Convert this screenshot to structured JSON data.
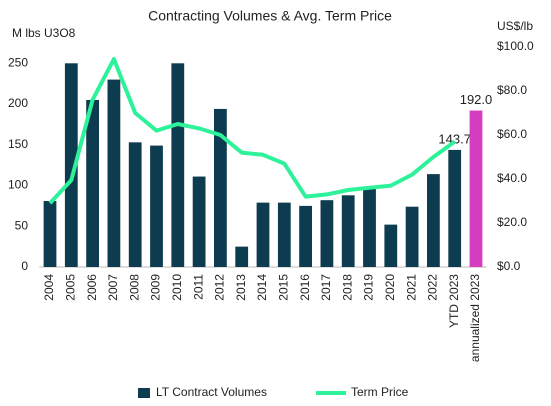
{
  "chart_data": {
    "type": "bar-line",
    "title": "Contracting Volumes & Avg. Term Price",
    "y_label": "M lbs U3O8",
    "y2_label": "US$/lb",
    "categories": [
      "2004",
      "2005",
      "2006",
      "2007",
      "2008",
      "2009",
      "2010",
      "2011",
      "2012",
      "2013",
      "2014",
      "2015",
      "2016",
      "2017",
      "2018",
      "2019",
      "2020",
      "2021",
      "2022",
      "YTD 2023",
      "annualized 2023"
    ],
    "series": [
      {
        "name": "LT Contract Volumes",
        "type": "bar",
        "color": "#0d3b4f",
        "colors": [
          "#0d3b4f",
          "#0d3b4f",
          "#0d3b4f",
          "#0d3b4f",
          "#0d3b4f",
          "#0d3b4f",
          "#0d3b4f",
          "#0d3b4f",
          "#0d3b4f",
          "#0d3b4f",
          "#0d3b4f",
          "#0d3b4f",
          "#0d3b4f",
          "#0d3b4f",
          "#0d3b4f",
          "#0d3b4f",
          "#0d3b4f",
          "#0d3b4f",
          "#0d3b4f",
          "#0d3b4f",
          "#d63cc0"
        ],
        "values": [
          81,
          250,
          205,
          230,
          153,
          149,
          250,
          111,
          194,
          25,
          79,
          79,
          75,
          82,
          88,
          97,
          52,
          74,
          114,
          143.7,
          192.0
        ],
        "value_labels": [
          null,
          null,
          null,
          null,
          null,
          null,
          null,
          null,
          null,
          null,
          null,
          null,
          null,
          null,
          null,
          null,
          null,
          null,
          null,
          "143.7",
          "192.0"
        ]
      },
      {
        "name": "Term Price",
        "type": "line",
        "axis": "y2",
        "color": "#2ef29a",
        "values": [
          29,
          39.5,
          76,
          94.5,
          70,
          62,
          65,
          63,
          60,
          52,
          51,
          47,
          32,
          33,
          35,
          36,
          37,
          42,
          50,
          57,
          null
        ]
      }
    ],
    "ylim": [
      0,
      270
    ],
    "yticks": [
      0,
      50,
      100,
      150,
      200,
      250
    ],
    "y2lim": [
      0,
      100
    ],
    "y2ticks": [
      {
        "value": 0,
        "label": "$0.0"
      },
      {
        "value": 20,
        "label": "$20.0"
      },
      {
        "value": 40,
        "label": "$40.0"
      },
      {
        "value": 60,
        "label": "$60.0"
      },
      {
        "value": 80,
        "label": "$80.0"
      },
      {
        "value": 100,
        "label": "$100.0"
      }
    ],
    "legend": "bottom"
  }
}
